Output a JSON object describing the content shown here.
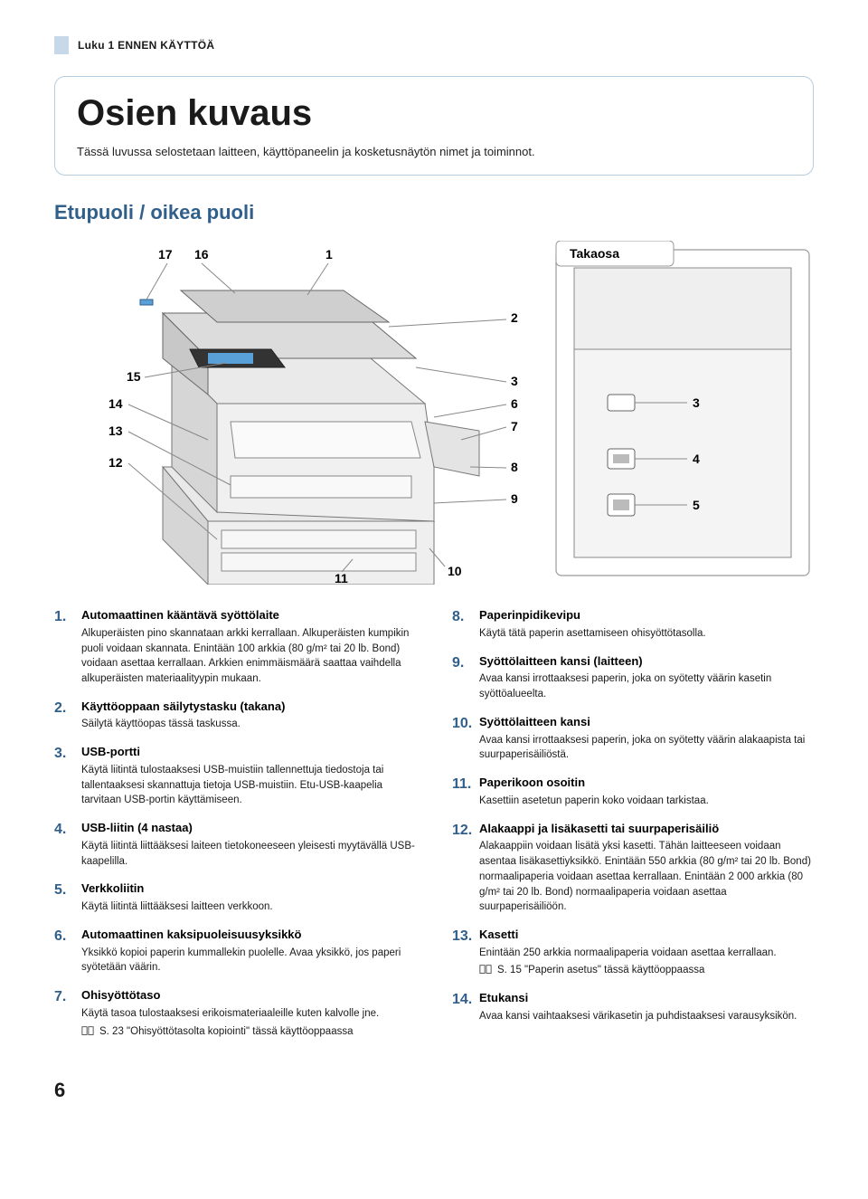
{
  "chapter": "Luku 1 ENNEN KÄYTTÖÄ",
  "page_title": "Osien kuvaus",
  "page_intro": "Tässä luvussa selostetaan laitteen, käyttöpaneelin ja kosketusnäytön nimet ja toiminnot.",
  "section_heading": "Etupuoli / oikea puoli",
  "diagram": {
    "front_label": "Takaosa",
    "callouts_left": [
      "12",
      "13",
      "14",
      "15",
      "17",
      "16"
    ],
    "callouts_right_front": [
      "1",
      "2",
      "3",
      "6",
      "7",
      "8",
      "9",
      "10",
      "11"
    ],
    "callouts_right_rear": [
      "3",
      "4",
      "5"
    ],
    "colors": {
      "background": "#ffffff",
      "box_border": "#9a9a9a",
      "box_corner_radius": 6,
      "printer_fill": "#e6e6e6",
      "printer_stroke": "#6a6a6a",
      "accent_blue": "#5aa0d8",
      "line_color": "#888888"
    }
  },
  "items_left": [
    {
      "num": "1.",
      "title": "Automaattinen kääntävä syöttölaite",
      "desc": "Alkuperäisten pino skannataan arkki kerrallaan. Alkuperäisten kumpikin puoli voidaan skannata. Enintään 100 arkkia (80 g/m² tai 20 lb. Bond) voidaan asettaa kerrallaan. Arkkien enimmäismäärä saattaa vaihdella alkuperäisten materiaalityypin mukaan."
    },
    {
      "num": "2.",
      "title": "Käyttöoppaan säilytystasku (takana)",
      "desc": "Säilytä käyttöopas tässä taskussa."
    },
    {
      "num": "3.",
      "title": "USB-portti",
      "desc": "Käytä liitintä tulostaaksesi USB-muistiin tallennettuja tiedostoja tai tallentaaksesi skannattuja tietoja USB-muistiin. Etu-USB-kaapelia tarvitaan USB-portin käyttämiseen."
    },
    {
      "num": "4.",
      "title": "USB-liitin (4 nastaa)",
      "desc": "Käytä liitintä liittääksesi laiteen tietokoneeseen yleisesti myytävällä USB-kaapelilla."
    },
    {
      "num": "5.",
      "title": "Verkkoliitin",
      "desc": "Käytä liitintä liittääksesi laitteen verkkoon."
    },
    {
      "num": "6.",
      "title": "Automaattinen kaksipuoleisuusyksikkö",
      "desc": "Yksikkö kopioi paperin kummallekin puolelle. Avaa yksikkö, jos paperi syötetään väärin."
    },
    {
      "num": "7.",
      "title": "Ohisyöttötaso",
      "desc": "Käytä tasoa tulostaaksesi erikoismateriaaleille kuten kalvolle jne.",
      "ref": "S. 23 \"Ohisyöttötasolta kopiointi\" tässä käyttöoppaassa"
    }
  ],
  "items_right": [
    {
      "num": "8.",
      "title": "Paperinpidikevipu",
      "desc": "Käytä tätä paperin asettamiseen ohisyöttötasolla."
    },
    {
      "num": "9.",
      "title": "Syöttölaitteen kansi (laitteen)",
      "desc": "Avaa kansi irrottaaksesi paperin, joka on syötetty väärin kasetin syöttöalueelta."
    },
    {
      "num": "10.",
      "title": "Syöttölaitteen kansi",
      "desc": "Avaa kansi irrottaaksesi paperin, joka on syötetty väärin alakaapista tai suurpaperisäiliöstä."
    },
    {
      "num": "11.",
      "title": "Paperikoon osoitin",
      "desc": "Kasettiin asetetun paperin koko voidaan tarkistaa."
    },
    {
      "num": "12.",
      "title": "Alakaappi ja lisäkasetti tai suurpaperisäiliö",
      "desc": "Alakaappiin voidaan lisätä yksi kasetti. Tähän laitteeseen voidaan asentaa lisäkasettiyksikkö. Enintään 550 arkkia (80 g/m² tai 20 lb. Bond) normaalipaperia voidaan asettaa kerrallaan. Enintään 2 000 arkkia (80 g/m² tai 20 lb. Bond) normaalipaperia voidaan asettaa suurpaperisäiliöön."
    },
    {
      "num": "13.",
      "title": "Kasetti",
      "desc": "Enintään 250 arkkia normaalipaperia voidaan asettaa kerrallaan.",
      "ref": "S. 15 \"Paperin asetus\" tässä käyttöoppaassa"
    },
    {
      "num": "14.",
      "title": "Etukansi",
      "desc": "Avaa kansi vaihtaaksesi värikasetin ja puhdistaaksesi varausyksikön."
    }
  ],
  "page_number": "6",
  "colors": {
    "heading_blue": "#2f5f8a",
    "card_border": "#b5cde0",
    "chapter_marker": "#c7d9e8",
    "text": "#1a1a1a"
  }
}
